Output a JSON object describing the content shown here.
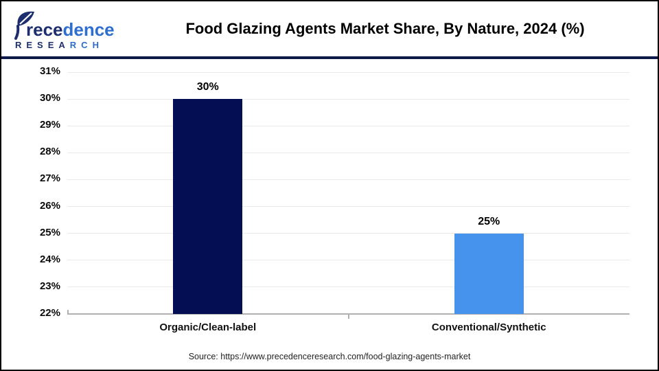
{
  "logo": {
    "brand": "Precedence",
    "brand_part1": "rece",
    "brand_part2": "dence",
    "research_part1": "RESEA",
    "research_part2": "RCH"
  },
  "header": {
    "title": "Food Glazing Agents Market Share, By Nature, 2024 (%)"
  },
  "source": {
    "text": "Source: https://www.precedenceresearch.com/food-glazing-agents-market"
  },
  "colors": {
    "separator": "#0e1a47",
    "gridline": "#e9e9e9",
    "axis": "#b0b0b0",
    "logo_navy": "#1c2e6d",
    "logo_blue": "#2f6ed1"
  },
  "chart_data": {
    "type": "bar",
    "title": "Food Glazing Agents Market Share, By Nature, 2024 (%)",
    "categories": [
      "Organic/Clean-label",
      "Conventional/Synthetic"
    ],
    "values": [
      30,
      25
    ],
    "value_labels": [
      "30%",
      "25%"
    ],
    "bar_colors": [
      "#040e52",
      "#4593ec"
    ],
    "ylim": [
      22,
      31
    ],
    "ytick_step": 1,
    "ytick_labels": [
      "31%",
      "30%",
      "29%",
      "28%",
      "27%",
      "26%",
      "25%",
      "24%",
      "23%",
      "22%"
    ],
    "grid": true,
    "legend": false,
    "xlabel": "",
    "ylabel": ""
  }
}
